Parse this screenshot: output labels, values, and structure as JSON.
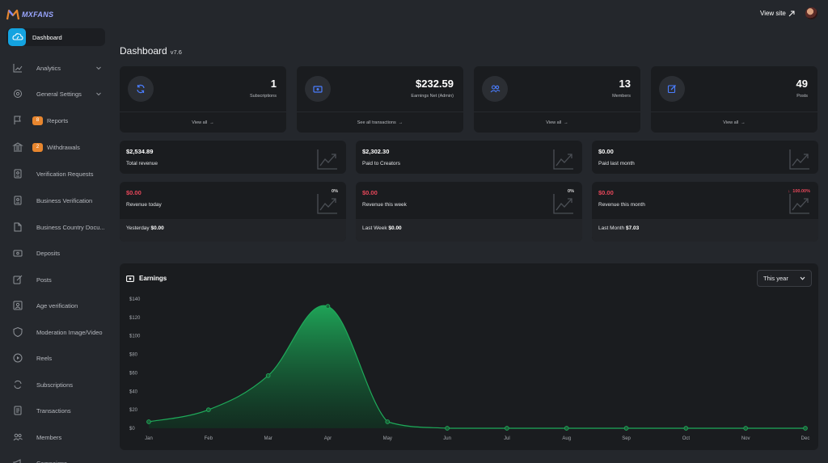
{
  "brand": {
    "name": "MXFANS"
  },
  "topbar": {
    "view_site": "View site"
  },
  "page": {
    "title": "Dashboard",
    "version": "v7.6"
  },
  "sidebar": {
    "items": [
      {
        "label": "Dashboard",
        "icon": "cloud-dashboard-icon",
        "active": true
      },
      {
        "label": "Analytics",
        "icon": "chart-line-icon",
        "chevron": true
      },
      {
        "label": "General Settings",
        "icon": "gear-icon",
        "chevron": true
      },
      {
        "label": "Reports",
        "icon": "flag-icon",
        "badge": "8"
      },
      {
        "label": "Withdrawals",
        "icon": "bank-icon",
        "badge": "2"
      },
      {
        "label": "Verification Requests",
        "icon": "id-card-icon"
      },
      {
        "label": "Business Verification",
        "icon": "building-icon"
      },
      {
        "label": "Business Country Docu...",
        "icon": "document-icon"
      },
      {
        "label": "Deposits",
        "icon": "wallet-icon"
      },
      {
        "label": "Posts",
        "icon": "edit-icon"
      },
      {
        "label": "Age verification",
        "icon": "person-frame-icon"
      },
      {
        "label": "Moderation Image/Video",
        "icon": "shield-icon"
      },
      {
        "label": "Reels",
        "icon": "play-circle-icon"
      },
      {
        "label": "Subscriptions",
        "icon": "refresh-icon"
      },
      {
        "label": "Transactions",
        "icon": "receipt-icon"
      },
      {
        "label": "Members",
        "icon": "users-icon"
      },
      {
        "label": "Campaigns",
        "icon": "megaphone-icon"
      }
    ]
  },
  "stats": [
    {
      "value": "1",
      "label": "Subscriptions",
      "link": "View all",
      "icon": "refresh-icon"
    },
    {
      "value": "$232.59",
      "label": "Earnings Net (Admin)",
      "link": "See all transactions",
      "icon": "cash-icon"
    },
    {
      "value": "13",
      "label": "Members",
      "link": "View all",
      "icon": "users-icon"
    },
    {
      "value": "49",
      "label": "Posts",
      "link": "View all",
      "icon": "edit-icon"
    }
  ],
  "revenue_summary": [
    {
      "value": "$2,534.89",
      "label": "Total revenue"
    },
    {
      "value": "$2,302.30",
      "label": "Paid to Creators"
    },
    {
      "value": "$0.00",
      "label": "Paid last month"
    }
  ],
  "revenue_periods": [
    {
      "value": "$0.00",
      "label": "Revenue today",
      "pct": "0%",
      "footer_label": "Yesterday",
      "footer_value": "$0.00"
    },
    {
      "value": "$0.00",
      "label": "Revenue this week",
      "pct": "0%",
      "footer_label": "Last Week",
      "footer_value": "$0.00"
    },
    {
      "value": "$0.00",
      "label": "Revenue this month",
      "pct": "100.00%",
      "pct_trend": "down",
      "footer_label": "Last Month",
      "footer_value": "$7.03"
    }
  ],
  "earnings": {
    "title": "Earnings",
    "period": "This year"
  },
  "colors": {
    "accent": "#14a3e0",
    "badge": "#e8862e",
    "negative": "#e8475a",
    "chart_line": "#1faa5a"
  },
  "chart_data": {
    "type": "area",
    "categories": [
      "Jan",
      "Feb",
      "Mar",
      "Apr",
      "May",
      "Jun",
      "Jul",
      "Aug",
      "Sep",
      "Oct",
      "Nov",
      "Dec"
    ],
    "series": [
      {
        "values": [
          7,
          20,
          57,
          132,
          7,
          0,
          0,
          0,
          0,
          0,
          0,
          0
        ]
      }
    ],
    "y_ticks": [
      "$0",
      "$20",
      "$40",
      "$60",
      "$80",
      "$100",
      "$120",
      "$140"
    ],
    "ylim": [
      0,
      140
    ],
    "grid": false,
    "smooth": true
  }
}
